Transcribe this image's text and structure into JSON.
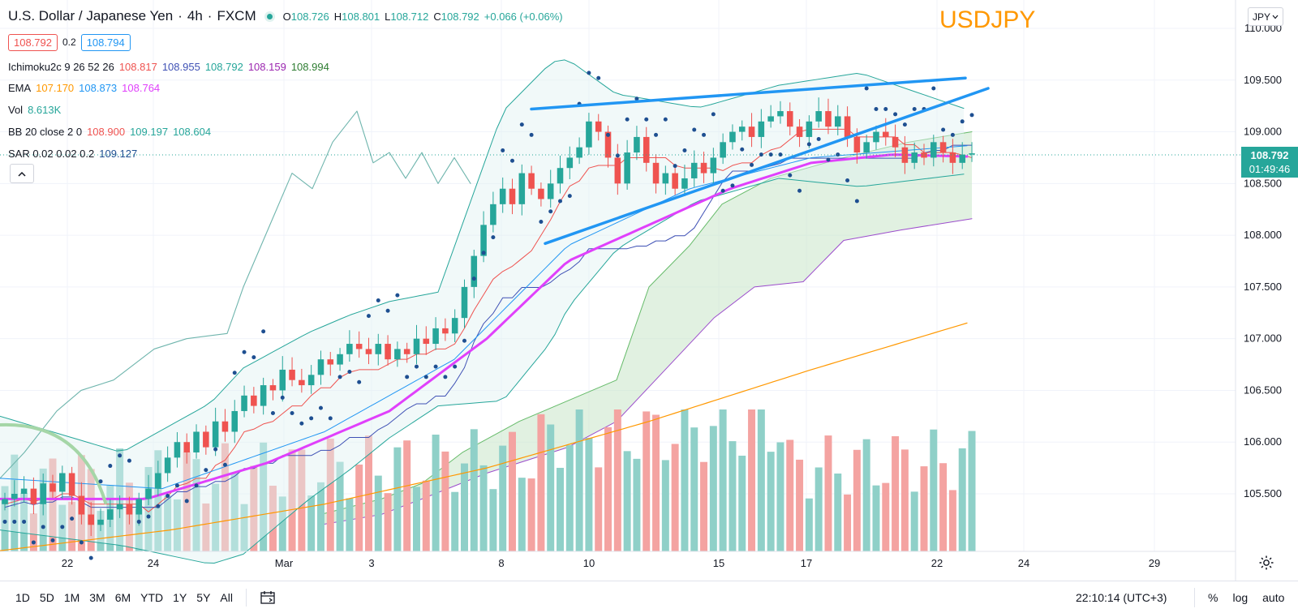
{
  "header": {
    "symbol_title": "U.S. Dollar / Japanese Yen",
    "interval": "4h",
    "exchange": "FXCM",
    "ohlc": {
      "o_label": "O",
      "o": "108.726",
      "h_label": "H",
      "h": "108.801",
      "l_label": "L",
      "l": "108.712",
      "c_label": "C",
      "c": "108.792",
      "change": "+0.066 (+0.06%)"
    },
    "bid": "108.792",
    "spread": "0.2",
    "ask": "108.794"
  },
  "indicators": {
    "ichimoku": {
      "name": "Ichimoku2c 9 26 52 26",
      "values": [
        "108.817",
        "108.955",
        "108.792",
        "108.159",
        "108.994"
      ],
      "colors": [
        "#ef5350",
        "#3f51b5",
        "#26a69a",
        "#9c27b0",
        "#2e7d32"
      ]
    },
    "ema": {
      "name": "EMA",
      "values": [
        "107.170",
        "108.873",
        "108.764"
      ],
      "colors": [
        "#ff9800",
        "#2196f3",
        "#e040fb"
      ]
    },
    "vol": {
      "name": "Vol",
      "values": [
        "8.613K"
      ],
      "colors": [
        "#26a69a"
      ]
    },
    "bb": {
      "name": "BB 20 close 2 0",
      "values": [
        "108.900",
        "109.197",
        "108.604"
      ],
      "colors": [
        "#ef5350",
        "#26a69a",
        "#26a69a"
      ]
    },
    "sar": {
      "name": "SAR 0.02 0.02 0.2",
      "values": [
        "109.127"
      ],
      "colors": [
        "#1e4f91"
      ]
    }
  },
  "watermark": "USDJPY",
  "currency_button": {
    "label": "JPY",
    "icon": "chevron-down-icon"
  },
  "last_price_tag": {
    "price": "108.792",
    "countdown": "01:49:46",
    "color": "#26a69a"
  },
  "price_axis_labels": [
    "110.000",
    "109.500",
    "109.000",
    "108.500",
    "108.000",
    "107.500",
    "107.000",
    "106.500",
    "106.000",
    "105.500"
  ],
  "time_axis_labels": [
    "22",
    "24",
    "Mar",
    "3",
    "8",
    "10",
    "15",
    "17",
    "22",
    "24",
    "29"
  ],
  "bottom_toolbar": {
    "ranges": [
      "1D",
      "5D",
      "1M",
      "3M",
      "6M",
      "YTD",
      "1Y",
      "5Y",
      "All"
    ],
    "calendar_icon": "calendar-icon",
    "clock": "22:10:14 (UTC+3)",
    "percent": "%",
    "log": "log",
    "auto": "auto"
  },
  "colors": {
    "up": "#26a69a",
    "down": "#ef5350",
    "vol_up": "#8fd0c8",
    "vol_down": "#f4a3a1",
    "ema_slow": "#ff9800",
    "ema_mid": "#2196f3",
    "ema_fast": "#e040fb",
    "sar": "#1e4f91",
    "trendline": "#2196f3",
    "cloud": "#c8e6c9",
    "bb": "#26a69a",
    "lagging": "#6fb5ad",
    "watermark": "#ff9800"
  },
  "chart_data": {
    "type": "candlestick",
    "symbol": "USDJPY",
    "timeframe": "4h",
    "y_range": [
      105.1,
      110.25
    ],
    "x_ticks": [
      "22",
      "24",
      "Mar",
      "3",
      "8",
      "10",
      "15",
      "17",
      "22",
      "24",
      "29"
    ],
    "close_path": [
      105.45,
      105.5,
      105.55,
      105.4,
      105.6,
      105.52,
      105.7,
      105.48,
      105.3,
      105.2,
      105.25,
      105.35,
      105.4,
      105.3,
      105.45,
      105.55,
      105.7,
      105.85,
      106.0,
      105.9,
      106.1,
      105.95,
      106.2,
      106.1,
      106.3,
      106.45,
      106.35,
      106.55,
      106.5,
      106.7,
      106.6,
      106.55,
      106.65,
      106.8,
      106.75,
      106.85,
      106.95,
      106.9,
      106.85,
      106.95,
      106.8,
      106.9,
      106.85,
      107.0,
      106.95,
      107.1,
      107.05,
      107.2,
      107.5,
      107.8,
      108.1,
      108.3,
      108.45,
      108.3,
      108.6,
      108.45,
      108.35,
      108.5,
      108.65,
      108.75,
      108.85,
      109.1,
      109.0,
      108.75,
      108.5,
      108.8,
      108.95,
      108.7,
      108.5,
      108.6,
      108.45,
      108.55,
      108.7,
      108.6,
      108.75,
      108.9,
      109.0,
      109.05,
      108.95,
      109.1,
      109.15,
      109.2,
      109.05,
      108.95,
      109.1,
      109.2,
      109.05,
      109.15,
      108.95,
      108.8,
      108.9,
      109.0,
      108.95,
      108.85,
      108.7,
      108.8,
      108.75,
      108.9,
      108.8,
      108.7,
      108.78,
      108.792
    ],
    "ema_slow": [
      [
        0,
        104.95
      ],
      [
        210,
        105.15
      ],
      [
        400,
        105.4
      ],
      [
        600,
        105.75
      ],
      [
        800,
        106.2
      ],
      [
        1000,
        106.7
      ],
      [
        1200,
        107.17
      ]
    ],
    "ema_mid": [
      [
        0,
        105.65
      ],
      [
        200,
        105.55
      ],
      [
        400,
        106.1
      ],
      [
        560,
        106.8
      ],
      [
        700,
        107.9
      ],
      [
        850,
        108.45
      ],
      [
        1000,
        108.75
      ],
      [
        1200,
        108.87
      ]
    ],
    "ema_fast": [
      [
        0,
        105.45
      ],
      [
        180,
        105.45
      ],
      [
        330,
        105.8
      ],
      [
        480,
        106.3
      ],
      [
        600,
        107.0
      ],
      [
        700,
        107.75
      ],
      [
        800,
        108.1
      ],
      [
        900,
        108.45
      ],
      [
        1000,
        108.7
      ],
      [
        1100,
        108.78
      ],
      [
        1200,
        108.76
      ]
    ],
    "sar_last": 109.127,
    "trendlines": [
      [
        [
          655,
          109.22
        ],
        [
          1190,
          109.52
        ]
      ],
      [
        [
          672,
          107.92
        ],
        [
          1218,
          109.42
        ]
      ]
    ],
    "volume_max": 10000,
    "volume_last": 8613
  }
}
